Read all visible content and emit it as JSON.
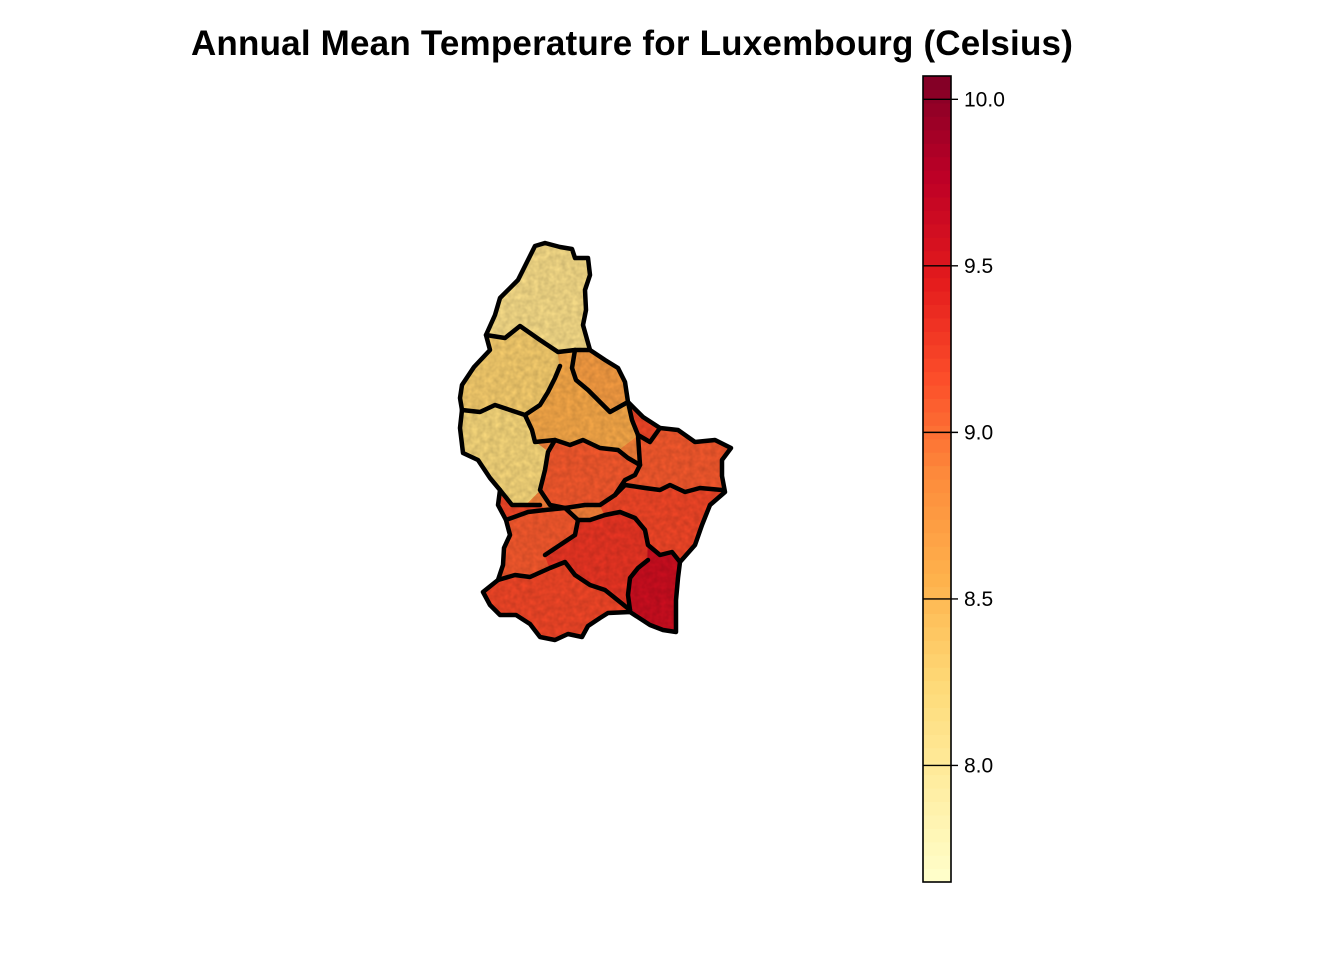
{
  "title": "Annual Mean Temperature for Luxembourg (Celsius)",
  "legend": {
    "min": 7.65,
    "max": 10.07,
    "ticks": [
      8.0,
      8.5,
      9.0,
      9.5,
      10.0
    ],
    "tick_labels": [
      "8.0",
      "8.5",
      "9.0",
      "9.5",
      "10.0"
    ],
    "palette": "YlOrRd",
    "colors": [
      "#ffffcc",
      "#ffeda0",
      "#fed976",
      "#feb24c",
      "#fd8d3c",
      "#fc4e2a",
      "#e31a1c",
      "#bd0026",
      "#800026"
    ]
  },
  "chart_data": {
    "type": "heatmap",
    "title": "Annual Mean Temperature for Luxembourg (Celsius)",
    "value_range": [
      7.65,
      10.07
    ],
    "legend_ticks": [
      8.0,
      8.5,
      9.0,
      9.5,
      10.0
    ],
    "regions": [
      {
        "value": 8.1
      },
      {
        "value": 8.3
      },
      {
        "value": 8.2
      },
      {
        "value": 8.6
      },
      {
        "value": 8.7
      },
      {
        "value": 9.1
      },
      {
        "value": 9.2
      },
      {
        "value": 9.1
      },
      {
        "value": 9.2
      },
      {
        "value": 9.2
      },
      {
        "value": 9.1
      },
      {
        "value": 9.3
      },
      {
        "value": 9.6
      }
    ]
  }
}
